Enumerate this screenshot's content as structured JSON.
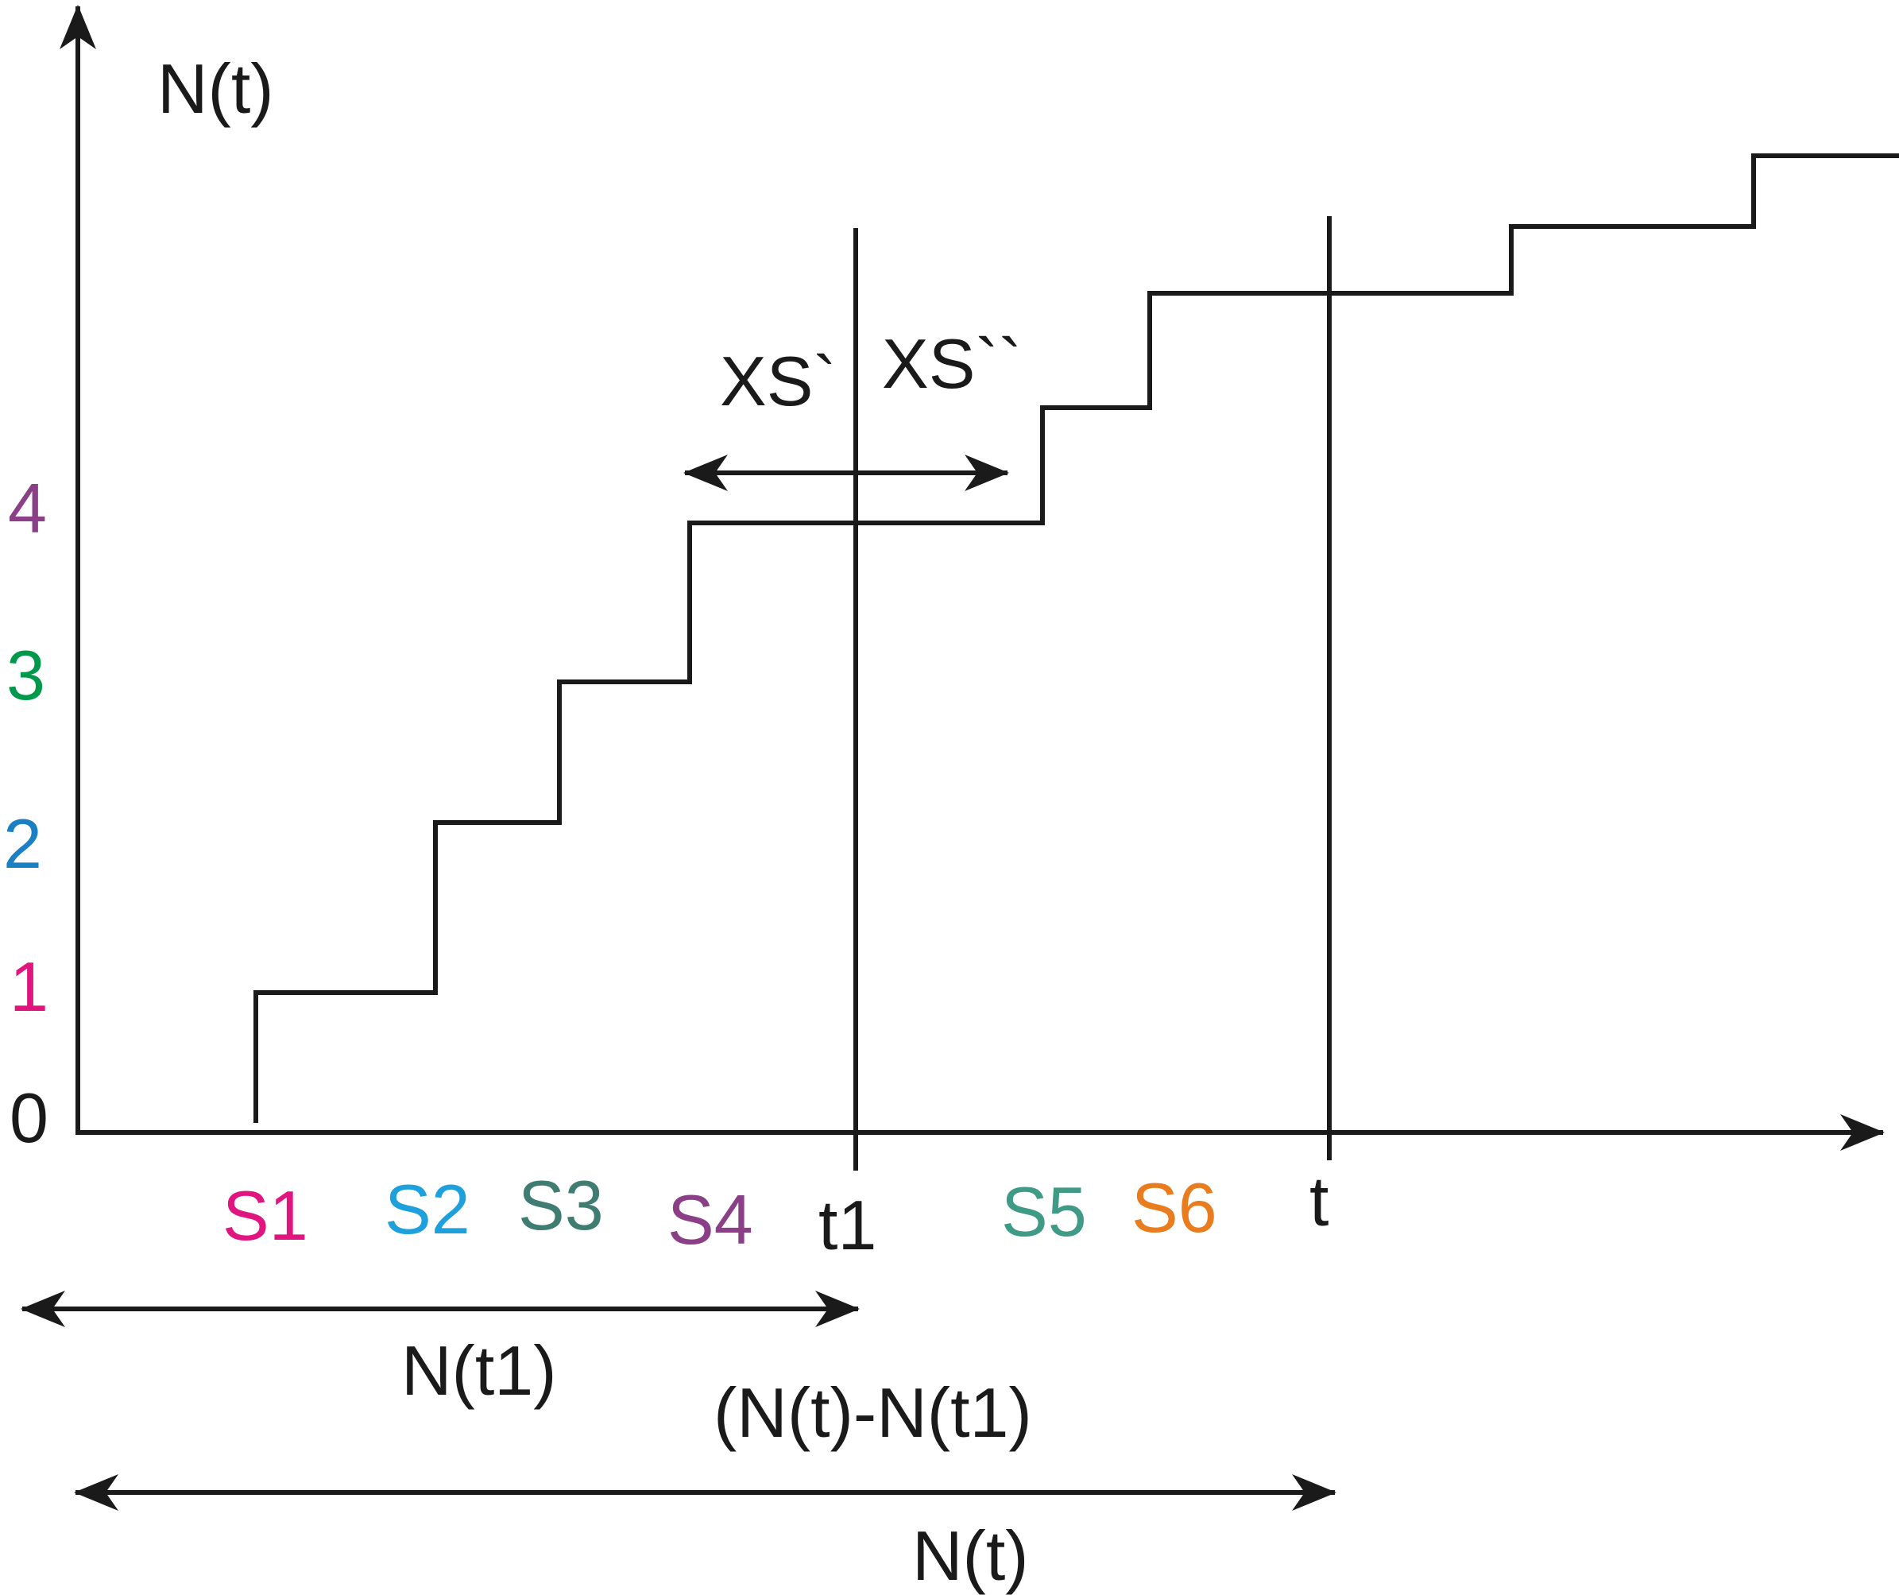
{
  "y_axis_label": "N(t)",
  "y_ticks": [
    {
      "text": "0",
      "color": "#1a1a1a"
    },
    {
      "text": "1",
      "color": "#e0157f"
    },
    {
      "text": "2",
      "color": "#1b7fc4"
    },
    {
      "text": "3",
      "color": "#00984a"
    },
    {
      "text": "4",
      "color": "#8b3f86"
    }
  ],
  "event_labels": [
    {
      "text": "S1",
      "color": "#e0157f"
    },
    {
      "text": "S2",
      "color": "#1ea0dc"
    },
    {
      "text": "S3",
      "color": "#3f7d72"
    },
    {
      "text": "S4",
      "color": "#8b3f86"
    },
    {
      "text": "S5",
      "color": "#3f9a86"
    },
    {
      "text": "S6",
      "color": "#e87c1e"
    }
  ],
  "time_marks": {
    "t1": "t1",
    "t": "t"
  },
  "xs_labels": {
    "left": "XS`",
    "right": "XS``"
  },
  "brackets": {
    "n_t1": "N(t1)",
    "diff": "(N(t)-N(t1)",
    "n_t": "N(t)"
  }
}
